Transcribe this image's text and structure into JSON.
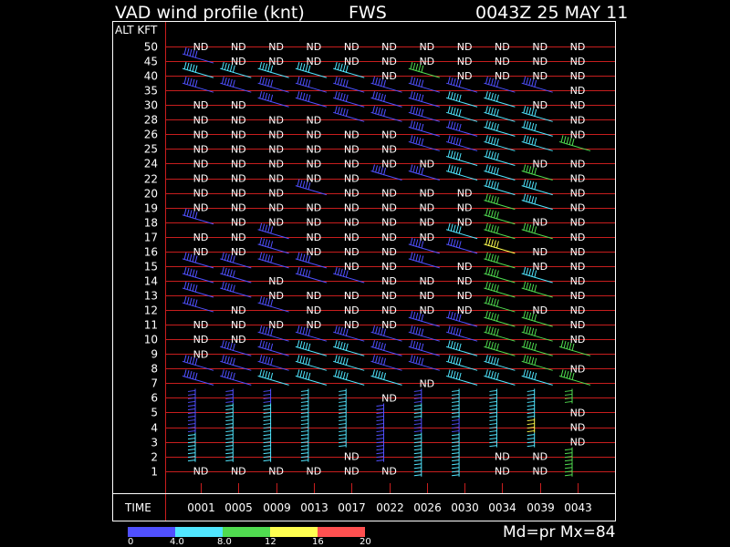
{
  "header": {
    "title": "VAD wind profile (knt)",
    "station": "FWS",
    "datetime": "0043Z 25 MAY 11"
  },
  "chart_data": {
    "type": "wind_barb_profile",
    "y_axis_label": "ALT KFT",
    "x_axis_label": "TIME",
    "altitudes": [
      50,
      45,
      40,
      35,
      30,
      28,
      26,
      25,
      24,
      22,
      20,
      19,
      18,
      17,
      16,
      15,
      14,
      13,
      12,
      11,
      10,
      9,
      8,
      7,
      6,
      5,
      4,
      3,
      2,
      1
    ],
    "times": [
      "0001",
      "0005",
      "0009",
      "0013",
      "0017",
      "0022",
      "0026",
      "0030",
      "0034",
      "0039",
      "0043"
    ],
    "no_data_label": "ND",
    "grid": true,
    "color_scale": {
      "colors": [
        "#5050ff",
        "#50e6ff",
        "#50dc50",
        "#ffff50",
        "#ff5050"
      ],
      "labels": [
        "0",
        "4.0",
        "8.0",
        "12",
        "16",
        "20"
      ]
    },
    "status_text": "Md=pr Mx=84",
    "observations": [
      [
        "ND",
        "ND",
        "ND",
        "ND",
        "ND",
        "ND",
        "ND",
        "ND",
        "ND",
        "ND",
        "ND"
      ],
      [
        "B",
        "ND",
        "ND",
        "ND",
        "ND",
        "ND",
        "ND",
        "ND",
        "ND",
        "ND",
        "ND"
      ],
      [
        "C",
        "C",
        "C",
        "C",
        "C",
        "ND",
        "G",
        "ND",
        "ND",
        "ND",
        "ND"
      ],
      [
        "B",
        "B",
        "B",
        "B",
        "B",
        "B",
        "B",
        "B",
        "B",
        "B",
        "ND"
      ],
      [
        "ND",
        "ND",
        "B",
        "B",
        "B",
        "B",
        "B",
        "C",
        "C",
        "ND",
        "ND"
      ],
      [
        "ND",
        "ND",
        "ND",
        "ND",
        "B",
        "B",
        "B",
        "C",
        "C",
        "C",
        "ND"
      ],
      [
        "ND",
        "ND",
        "ND",
        "ND",
        "ND",
        "ND",
        "B",
        "B",
        "C",
        "C",
        "ND"
      ],
      [
        "ND",
        "ND",
        "ND",
        "ND",
        "ND",
        "ND",
        "B",
        "B",
        "C",
        "C",
        "G"
      ],
      [
        "ND",
        "ND",
        "ND",
        "ND",
        "ND",
        "ND",
        "ND",
        "C",
        "C",
        "ND",
        "ND"
      ],
      [
        "ND",
        "ND",
        "ND",
        "ND",
        "ND",
        "B",
        "B",
        "C",
        "C",
        "G",
        "ND"
      ],
      [
        "ND",
        "ND",
        "ND",
        "B",
        "ND",
        "ND",
        "ND",
        "ND",
        "C",
        "C",
        "ND"
      ],
      [
        "ND",
        "ND",
        "ND",
        "ND",
        "ND",
        "ND",
        "ND",
        "ND",
        "G",
        "C",
        "ND"
      ],
      [
        "B",
        "ND",
        "ND",
        "ND",
        "ND",
        "ND",
        "ND",
        "ND",
        "G",
        "ND",
        "ND"
      ],
      [
        "ND",
        "ND",
        "B",
        "ND",
        "ND",
        "ND",
        "ND",
        "C",
        "G",
        "G",
        "ND"
      ],
      [
        "ND",
        "ND",
        "B",
        "ND",
        "ND",
        "ND",
        "B",
        "B",
        "Y",
        "ND",
        "ND"
      ],
      [
        "B",
        "B",
        "B",
        "B",
        "ND",
        "ND",
        "B",
        "ND",
        "G",
        "ND",
        "ND"
      ],
      [
        "B",
        "B",
        "ND",
        "B",
        "B",
        "ND",
        "ND",
        "ND",
        "G",
        "C",
        "ND"
      ],
      [
        "B",
        "B",
        "ND",
        "ND",
        "ND",
        "ND",
        "ND",
        "ND",
        "G",
        "G",
        "ND"
      ],
      [
        "B",
        "ND",
        "B",
        "ND",
        "ND",
        "ND",
        "ND",
        "ND",
        "G",
        "ND",
        "ND"
      ],
      [
        "ND",
        "ND",
        "ND",
        "ND",
        "ND",
        "ND",
        "B",
        "B",
        "G",
        "G",
        "ND"
      ],
      [
        "ND",
        "ND",
        "B",
        "B",
        "B",
        "B",
        "B",
        "B",
        "G",
        "G",
        "ND"
      ],
      [
        "ND",
        "B",
        "B",
        "C",
        "C",
        "B",
        "B",
        "C",
        "G",
        "G",
        "G"
      ],
      [
        "B",
        "B",
        "B",
        "C",
        "C",
        "B",
        "B",
        "C",
        "C",
        "G",
        "ND"
      ],
      [
        "B",
        "B",
        "C",
        "C",
        "C",
        "C",
        "ND",
        "C",
        "C",
        "C",
        "G"
      ],
      [
        "B",
        "B",
        "B",
        "C",
        "C",
        "ND",
        "B",
        "C",
        "C",
        "C",
        "G"
      ],
      [
        "B",
        "C",
        "C",
        "C",
        "C",
        "B",
        "C",
        "C",
        "C",
        "C",
        "ND"
      ],
      [
        "B",
        "C",
        "C",
        "C",
        "C",
        "B",
        "B",
        "B",
        "C",
        "Y",
        "ND"
      ],
      [
        "C",
        "C",
        "C",
        "C",
        "C",
        "B",
        "C",
        "C",
        "C",
        "C",
        "ND"
      ],
      [
        "C",
        "C",
        "C",
        "C",
        "ND",
        "B",
        "C",
        "C",
        "ND",
        "ND",
        "G"
      ],
      [
        "ND",
        "ND",
        "ND",
        "ND",
        "ND",
        "ND",
        "C",
        "C",
        "ND",
        "ND",
        "G"
      ]
    ]
  }
}
